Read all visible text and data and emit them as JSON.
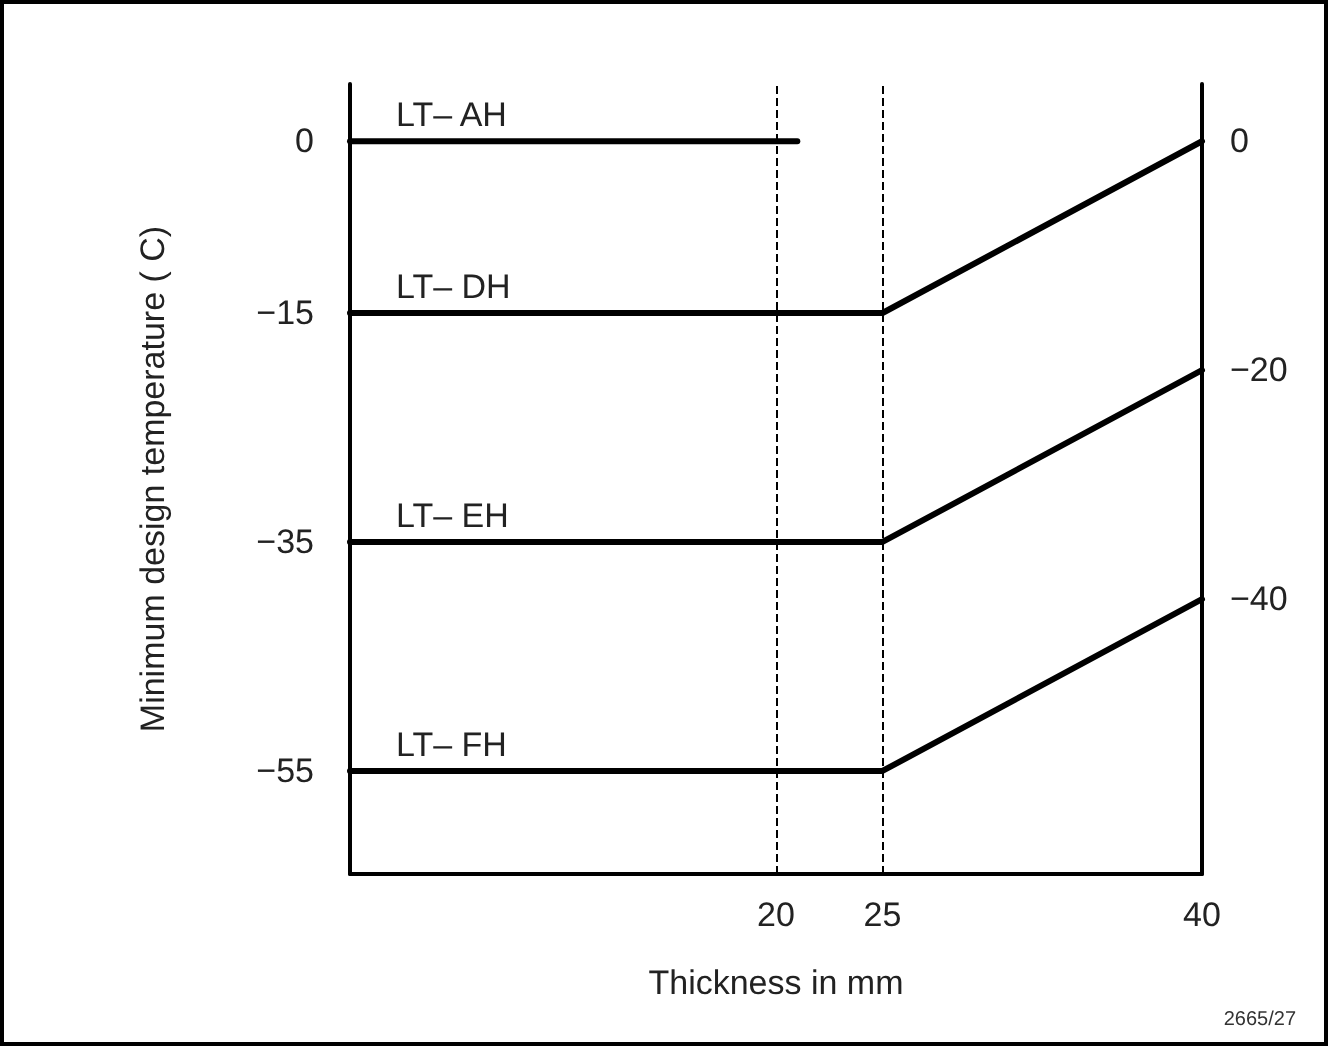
{
  "chart_data": {
    "type": "line",
    "xlabel": "Thickness in mm",
    "ylabel": "Minimum design temperature ( C)",
    "xlim": [
      0,
      40
    ],
    "xticks": [
      20,
      25,
      40
    ],
    "ylim": [
      -64,
      5
    ],
    "yticks": [
      0,
      -15,
      -35,
      -55
    ],
    "y2lim": [
      -64,
      5
    ],
    "y2ticks": [
      0,
      -20,
      -40
    ],
    "series": [
      {
        "name": "LT– AH",
        "color": "#000000",
        "x": [
          0,
          21
        ],
        "values": [
          0,
          0
        ]
      },
      {
        "name": "LT– DH",
        "color": "#000000",
        "x": [
          0,
          25,
          40
        ],
        "values": [
          -15,
          -15,
          0
        ]
      },
      {
        "name": "LT– EH",
        "color": "#000000",
        "x": [
          0,
          25,
          40
        ],
        "values": [
          -35,
          -35,
          -20
        ]
      },
      {
        "name": "LT– FH",
        "color": "#000000",
        "x": [
          0,
          25,
          40
        ],
        "values": [
          -55,
          -55,
          -40
        ]
      }
    ],
    "ref_lines": [
      {
        "axis": "x",
        "value": 20,
        "line_style": "dashed",
        "color": "#000000"
      },
      {
        "axis": "x",
        "value": 25,
        "line_style": "dashed",
        "color": "#000000"
      }
    ],
    "annotations": [
      "2665/27"
    ],
    "marker": "none",
    "line_style": "solid",
    "grid": false,
    "legend": false
  }
}
